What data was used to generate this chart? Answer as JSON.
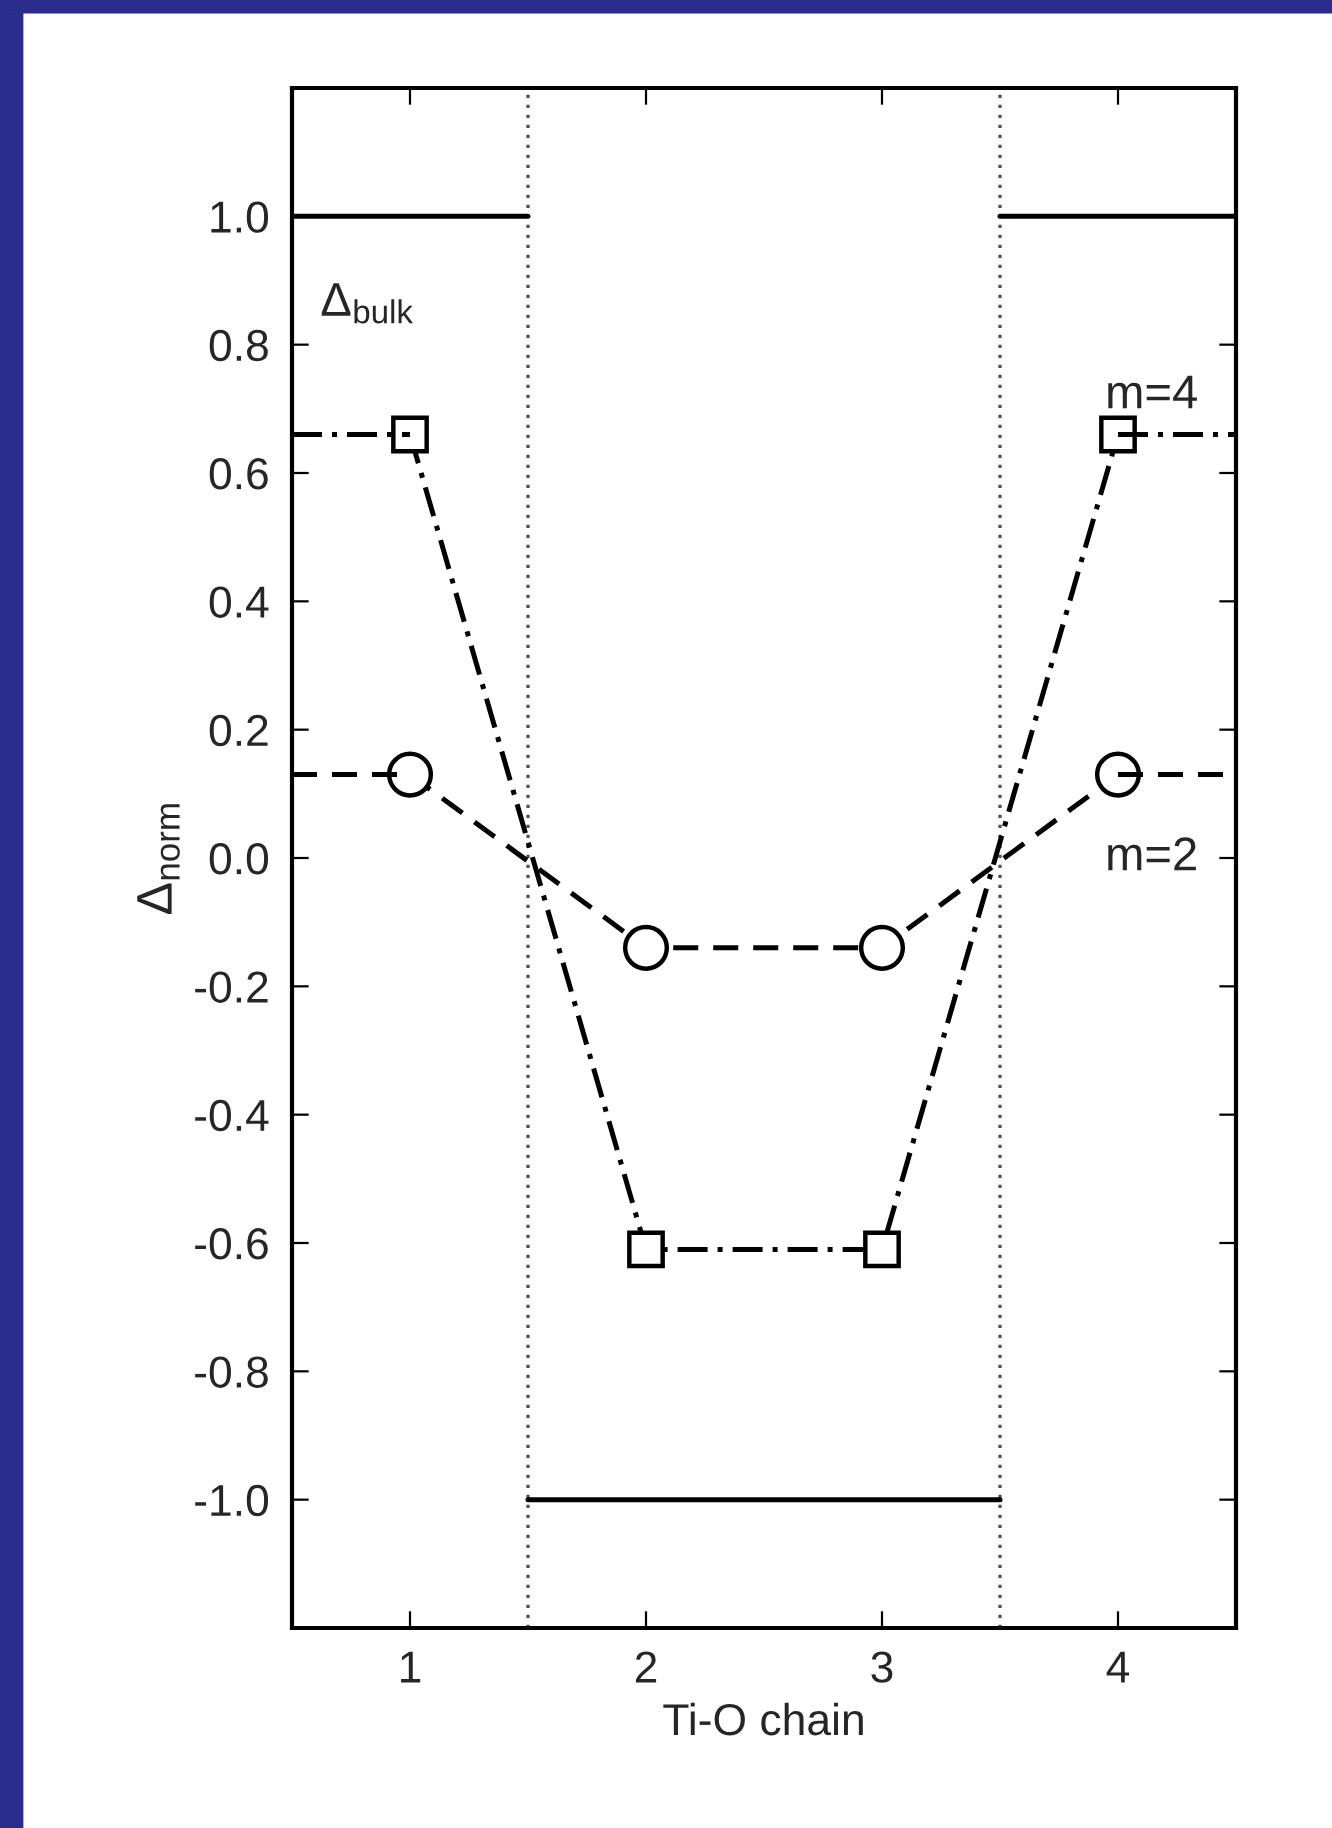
{
  "chart_data": {
    "type": "line",
    "xlabel": "Ti-O chain",
    "ylabel": "Δ$_{norm}$",
    "xlim": [
      0.5,
      4.5
    ],
    "xticks": [
      1,
      2,
      3,
      4
    ],
    "ylim": [
      -1.2,
      1.2
    ],
    "yticks": [
      {
        "value": -1.0,
        "label": "-1.0"
      },
      {
        "value": -0.8,
        "label": "-0.8"
      },
      {
        "value": -0.6,
        "label": "-0.6"
      },
      {
        "value": -0.4,
        "label": "-0.4"
      },
      {
        "value": -0.2,
        "label": "-0.2"
      },
      {
        "value": 0.0,
        "label": "0.0"
      },
      {
        "value": 0.2,
        "label": "0.2"
      },
      {
        "value": 0.4,
        "label": "0.4"
      },
      {
        "value": 0.6,
        "label": "0.6"
      },
      {
        "value": 0.8,
        "label": "0.8"
      },
      {
        "value": 1.0,
        "label": "1.0"
      }
    ],
    "grid": false,
    "legend": false,
    "series": [
      {
        "color": "#000000",
        "x": [
          0.5,
          1.5
        ],
        "values": [
          1.0,
          1.0
        ],
        "marker": "none",
        "line_style": "solid"
      },
      {
        "color": "#000000",
        "x": [
          1.5,
          3.5
        ],
        "values": [
          -1.0,
          -1.0
        ],
        "marker": "none",
        "line_style": "solid"
      },
      {
        "color": "#000000",
        "x": [
          3.5,
          4.5
        ],
        "values": [
          1.0,
          1.0
        ],
        "marker": "none",
        "line_style": "solid"
      },
      {
        "color": "#000000",
        "x": [
          1,
          2,
          3,
          4
        ],
        "values": [
          0.66,
          -0.61,
          -0.61,
          0.66
        ],
        "marker": "square",
        "line_style": "dashdot"
      },
      {
        "color": "#000000",
        "x": [
          0.5,
          1
        ],
        "values": [
          0.66,
          0.66
        ],
        "marker": "none",
        "line_style": "dashdot"
      },
      {
        "color": "#000000",
        "x": [
          4,
          4.5
        ],
        "values": [
          0.66,
          0.66
        ],
        "marker": "none",
        "line_style": "dashdot"
      },
      {
        "color": "#000000",
        "x": [
          1,
          2,
          3,
          4
        ],
        "values": [
          0.13,
          -0.14,
          -0.14,
          0.13
        ],
        "marker": "circle",
        "line_style": "dashed"
      },
      {
        "color": "#000000",
        "x": [
          0.5,
          1
        ],
        "values": [
          0.13,
          0.13
        ],
        "marker": "none",
        "line_style": "dashed"
      },
      {
        "color": "#000000",
        "x": [
          4,
          4.5
        ],
        "values": [
          0.13,
          0.13
        ],
        "marker": "none",
        "line_style": "dashed"
      }
    ],
    "ref_lines": [
      {
        "axis": "x",
        "value": 1.5,
        "color": "#555555",
        "line_style": "dotted"
      },
      {
        "axis": "x",
        "value": 3.5,
        "color": "#555555",
        "line_style": "dotted"
      }
    ],
    "annotations": [
      "Δ$_{bulk}$",
      "m=4",
      "m=2"
    ]
  }
}
